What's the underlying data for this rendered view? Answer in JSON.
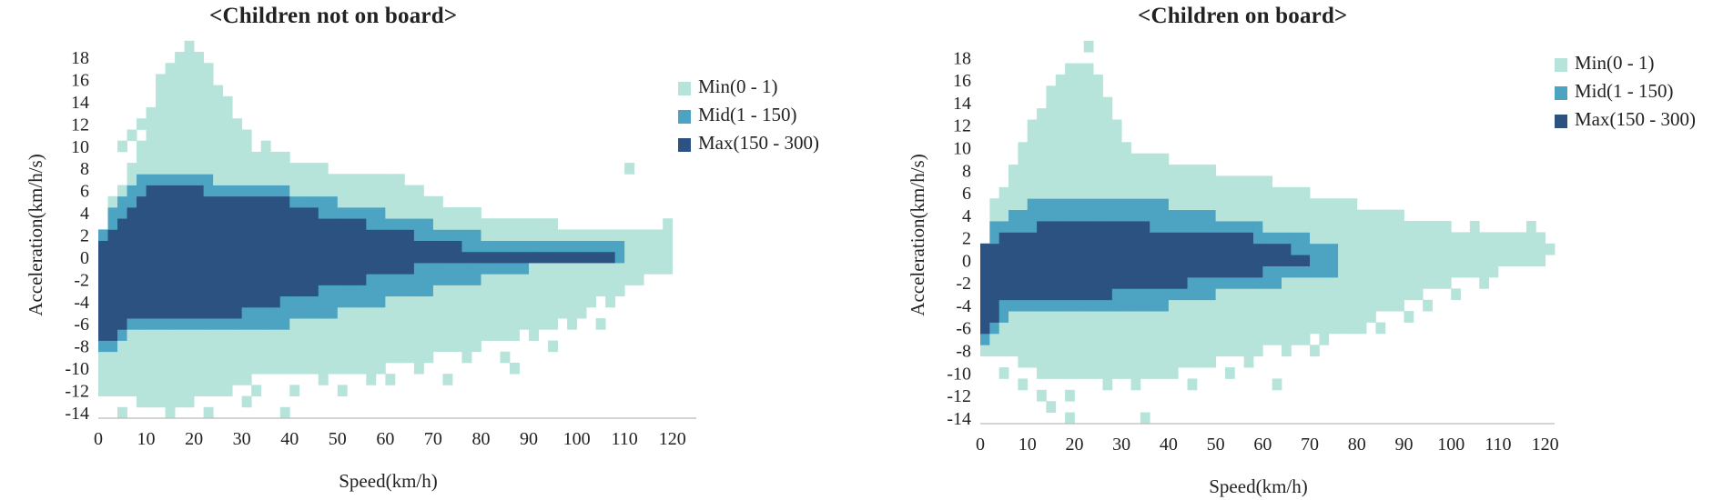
{
  "colors": {
    "min": "#b7e4da",
    "mid": "#4da3c2",
    "max": "#2c5282",
    "axis": "#bbbbbb"
  },
  "chart_data": [
    {
      "type": "heatmap",
      "title": "<Children not on board>",
      "xlabel": "Speed(km/h)",
      "ylabel": "Acceleration(km/h/s)",
      "x_ticks": [
        "0",
        "10",
        "20",
        "30",
        "40",
        "50",
        "60",
        "70",
        "80",
        "90",
        "100",
        "110",
        "120"
      ],
      "y_ticks": [
        "18",
        "16",
        "14",
        "12",
        "10",
        "8",
        "6",
        "4",
        "2",
        "0",
        "-2",
        "-4",
        "-6",
        "-8",
        "-10",
        "-12",
        "-14"
      ],
      "xlim": [
        0,
        125
      ],
      "ylim": [
        -14.5,
        18.5
      ],
      "bin_size": {
        "x": 2,
        "y": 1
      },
      "legend": [
        {
          "key": "min",
          "label": "Min(0 - 1)"
        },
        {
          "key": "mid",
          "label": "Mid(1 - 150)"
        },
        {
          "key": "max",
          "label": "Max(150 - 300)"
        }
      ],
      "regions": [
        {
          "level": "min",
          "points": [
            [
              0,
              -12
            ],
            [
              6,
              -12
            ],
            [
              12,
              -14
            ],
            [
              20,
              -13
            ],
            [
              28,
              -12
            ],
            [
              36,
              -10
            ],
            [
              44,
              -10
            ],
            [
              52,
              -10
            ],
            [
              60,
              -10
            ],
            [
              70,
              -9
            ],
            [
              80,
              -8
            ],
            [
              88,
              -7
            ],
            [
              96,
              -6
            ],
            [
              104,
              -4
            ],
            [
              110,
              -3
            ],
            [
              120,
              -1
            ],
            [
              120,
              2
            ],
            [
              110,
              3
            ],
            [
              104,
              3
            ],
            [
              96,
              3
            ],
            [
              88,
              4
            ],
            [
              80,
              4
            ],
            [
              72,
              5
            ],
            [
              64,
              7
            ],
            [
              56,
              8
            ],
            [
              48,
              8
            ],
            [
              40,
              9
            ],
            [
              32,
              10
            ],
            [
              28,
              13
            ],
            [
              24,
              17
            ],
            [
              20,
              19
            ],
            [
              17,
              19
            ],
            [
              14,
              17
            ],
            [
              12,
              15
            ],
            [
              10,
              12
            ],
            [
              8,
              9
            ],
            [
              6,
              7
            ],
            [
              3,
              5
            ],
            [
              1,
              1
            ],
            [
              0,
              0
            ]
          ]
        },
        {
          "level": "mid",
          "points": [
            [
              0,
              -9
            ],
            [
              4,
              -8
            ],
            [
              10,
              -6
            ],
            [
              20,
              -6
            ],
            [
              30,
              -6
            ],
            [
              40,
              -6
            ],
            [
              50,
              -5
            ],
            [
              60,
              -4
            ],
            [
              70,
              -3
            ],
            [
              80,
              -2
            ],
            [
              90,
              -1
            ],
            [
              100,
              -0.5
            ],
            [
              110,
              0
            ],
            [
              110,
              1
            ],
            [
              100,
              1.5
            ],
            [
              90,
              2
            ],
            [
              80,
              2
            ],
            [
              70,
              3
            ],
            [
              60,
              4
            ],
            [
              50,
              5
            ],
            [
              40,
              6
            ],
            [
              32,
              7
            ],
            [
              24,
              7
            ],
            [
              18,
              8
            ],
            [
              12,
              8
            ],
            [
              8,
              7
            ],
            [
              4,
              5
            ],
            [
              1,
              2
            ],
            [
              0,
              0
            ]
          ]
        },
        {
          "level": "max",
          "points": [
            [
              0,
              -7
            ],
            [
              4,
              -7
            ],
            [
              8,
              -5
            ],
            [
              14,
              -5
            ],
            [
              22,
              -5
            ],
            [
              30,
              -5
            ],
            [
              38,
              -4
            ],
            [
              46,
              -3
            ],
            [
              56,
              -2
            ],
            [
              66,
              -1
            ],
            [
              76,
              -0.5
            ],
            [
              86,
              -0.5
            ],
            [
              96,
              -0.5
            ],
            [
              108,
              -0.5
            ],
            [
              108,
              1
            ],
            [
              96,
              1
            ],
            [
              86,
              1
            ],
            [
              76,
              1
            ],
            [
              66,
              2
            ],
            [
              56,
              3
            ],
            [
              46,
              4
            ],
            [
              40,
              5
            ],
            [
              34,
              6
            ],
            [
              28,
              5
            ],
            [
              22,
              6
            ],
            [
              16,
              7
            ],
            [
              12,
              7
            ],
            [
              8,
              5
            ],
            [
              4,
              3
            ],
            [
              1,
              1
            ],
            [
              0,
              0
            ]
          ]
        }
      ],
      "scatter_cells": [
        [
          4,
          10
        ],
        [
          6,
          11
        ],
        [
          8,
          12
        ],
        [
          10,
          13
        ],
        [
          12,
          14
        ],
        [
          14,
          16
        ],
        [
          16,
          18
        ],
        [
          18,
          19
        ],
        [
          20,
          18
        ],
        [
          22,
          16
        ],
        [
          24,
          15
        ],
        [
          26,
          14
        ],
        [
          28,
          12
        ],
        [
          30,
          11
        ],
        [
          34,
          10
        ],
        [
          110,
          8
        ],
        [
          112,
          2
        ],
        [
          116,
          2
        ],
        [
          118,
          3
        ],
        [
          100,
          -5
        ],
        [
          104,
          -6
        ],
        [
          94,
          -8
        ],
        [
          84,
          -9
        ],
        [
          86,
          -10
        ],
        [
          72,
          -11
        ],
        [
          60,
          -11
        ],
        [
          50,
          -12
        ],
        [
          40,
          -12
        ],
        [
          30,
          -13
        ],
        [
          22,
          -14
        ],
        [
          14,
          -14
        ],
        [
          8,
          -13
        ],
        [
          4,
          -14
        ],
        [
          2,
          -12
        ],
        [
          38,
          -14
        ],
        [
          18,
          -13
        ],
        [
          26,
          -12
        ],
        [
          6,
          -11
        ],
        [
          90,
          -7
        ],
        [
          98,
          -6
        ],
        [
          106,
          -4
        ],
        [
          76,
          -9
        ],
        [
          66,
          -10
        ],
        [
          56,
          -11
        ],
        [
          46,
          -11
        ],
        [
          32,
          -12
        ],
        [
          0,
          -10
        ],
        [
          0,
          -9
        ]
      ]
    },
    {
      "type": "heatmap",
      "title": "<Children on board>",
      "xlabel": "Speed(km/h)",
      "ylabel": "Acceleration(km/h/s)",
      "x_ticks": [
        "0",
        "10",
        "20",
        "30",
        "40",
        "50",
        "60",
        "70",
        "80",
        "90",
        "100",
        "110",
        "120"
      ],
      "y_ticks": [
        "18",
        "16",
        "14",
        "12",
        "10",
        "8",
        "6",
        "4",
        "2",
        "0",
        "-2",
        "-4",
        "-6",
        "-8",
        "-10",
        "-12",
        "-14"
      ],
      "xlim": [
        0,
        122
      ],
      "ylim": [
        -14.5,
        19
      ],
      "bin_size": {
        "x": 2,
        "y": 1
      },
      "legend": [
        {
          "key": "min",
          "label": "Min(0 - 1)"
        },
        {
          "key": "mid",
          "label": "Mid(1 - 150)"
        },
        {
          "key": "max",
          "label": "Max(150 - 300)"
        }
      ],
      "regions": [
        {
          "level": "min",
          "points": [
            [
              0,
              -8
            ],
            [
              6,
              -8
            ],
            [
              12,
              -10
            ],
            [
              20,
              -11
            ],
            [
              30,
              -10
            ],
            [
              40,
              -10
            ],
            [
              50,
              -9
            ],
            [
              60,
              -8
            ],
            [
              70,
              -7
            ],
            [
              80,
              -6
            ],
            [
              90,
              -4
            ],
            [
              100,
              -2
            ],
            [
              110,
              -1
            ],
            [
              120,
              0
            ],
            [
              120,
              3
            ],
            [
              110,
              3
            ],
            [
              100,
              3
            ],
            [
              90,
              4
            ],
            [
              80,
              5
            ],
            [
              70,
              6
            ],
            [
              60,
              7
            ],
            [
              50,
              8
            ],
            [
              40,
              9
            ],
            [
              32,
              10
            ],
            [
              28,
              14
            ],
            [
              24,
              18
            ],
            [
              20,
              18
            ],
            [
              16,
              16
            ],
            [
              12,
              13
            ],
            [
              10,
              11
            ],
            [
              8,
              9
            ],
            [
              6,
              7
            ],
            [
              3,
              5
            ],
            [
              1,
              1
            ],
            [
              0,
              0
            ]
          ]
        },
        {
          "level": "mid",
          "points": [
            [
              0,
              -8
            ],
            [
              4,
              -6
            ],
            [
              10,
              -4
            ],
            [
              20,
              -4
            ],
            [
              30,
              -4
            ],
            [
              40,
              -4
            ],
            [
              50,
              -3
            ],
            [
              60,
              -2.5
            ],
            [
              70,
              -1.5
            ],
            [
              76,
              -1
            ],
            [
              76,
              1
            ],
            [
              70,
              2
            ],
            [
              60,
              3
            ],
            [
              50,
              4
            ],
            [
              40,
              5
            ],
            [
              34,
              6
            ],
            [
              30,
              5
            ],
            [
              24,
              6
            ],
            [
              16,
              6
            ],
            [
              10,
              5
            ],
            [
              6,
              4
            ],
            [
              3,
              3
            ],
            [
              1,
              1
            ],
            [
              0,
              0
            ]
          ]
        },
        {
          "level": "max",
          "points": [
            [
              0,
              -7
            ],
            [
              3,
              -6
            ],
            [
              6,
              -3
            ],
            [
              12,
              -3
            ],
            [
              20,
              -3
            ],
            [
              28,
              -3
            ],
            [
              32,
              -2
            ],
            [
              36,
              -2
            ],
            [
              44,
              -2
            ],
            [
              52,
              -1.5
            ],
            [
              60,
              -1
            ],
            [
              68,
              -0.5
            ],
            [
              70,
              -0.5
            ],
            [
              70,
              1
            ],
            [
              66,
              1
            ],
            [
              58,
              2
            ],
            [
              50,
              3
            ],
            [
              42,
              3
            ],
            [
              36,
              3
            ],
            [
              32,
              4
            ],
            [
              26,
              4
            ],
            [
              18,
              4
            ],
            [
              12,
              3
            ],
            [
              8,
              3
            ],
            [
              4,
              2
            ],
            [
              1,
              1
            ],
            [
              0,
              0
            ]
          ]
        }
      ],
      "scatter_cells": [
        [
          22,
          19
        ],
        [
          20,
          17
        ],
        [
          24,
          16
        ],
        [
          18,
          15
        ],
        [
          26,
          14
        ],
        [
          16,
          13
        ],
        [
          14,
          12
        ],
        [
          22,
          11
        ],
        [
          30,
          10
        ],
        [
          36,
          9
        ],
        [
          12,
          9
        ],
        [
          116,
          3
        ],
        [
          118,
          2
        ],
        [
          120,
          1
        ],
        [
          112,
          2
        ],
        [
          104,
          3
        ],
        [
          96,
          1
        ],
        [
          86,
          4
        ],
        [
          78,
          5
        ],
        [
          68,
          6
        ],
        [
          60,
          7
        ],
        [
          110,
          0
        ],
        [
          100,
          -3
        ],
        [
          90,
          -5
        ],
        [
          80,
          -6
        ],
        [
          72,
          -7
        ],
        [
          64,
          -8
        ],
        [
          56,
          -9
        ],
        [
          48,
          -9
        ],
        [
          40,
          -10
        ],
        [
          32,
          -11
        ],
        [
          26,
          -11
        ],
        [
          18,
          -12
        ],
        [
          12,
          -12
        ],
        [
          8,
          -11
        ],
        [
          4,
          -10
        ],
        [
          34,
          -14
        ],
        [
          18,
          -14
        ],
        [
          14,
          -13
        ],
        [
          62,
          -11
        ],
        [
          44,
          -11
        ],
        [
          52,
          -10
        ],
        [
          70,
          -8
        ],
        [
          84,
          -6
        ],
        [
          94,
          -4
        ],
        [
          106,
          -2
        ]
      ]
    }
  ]
}
